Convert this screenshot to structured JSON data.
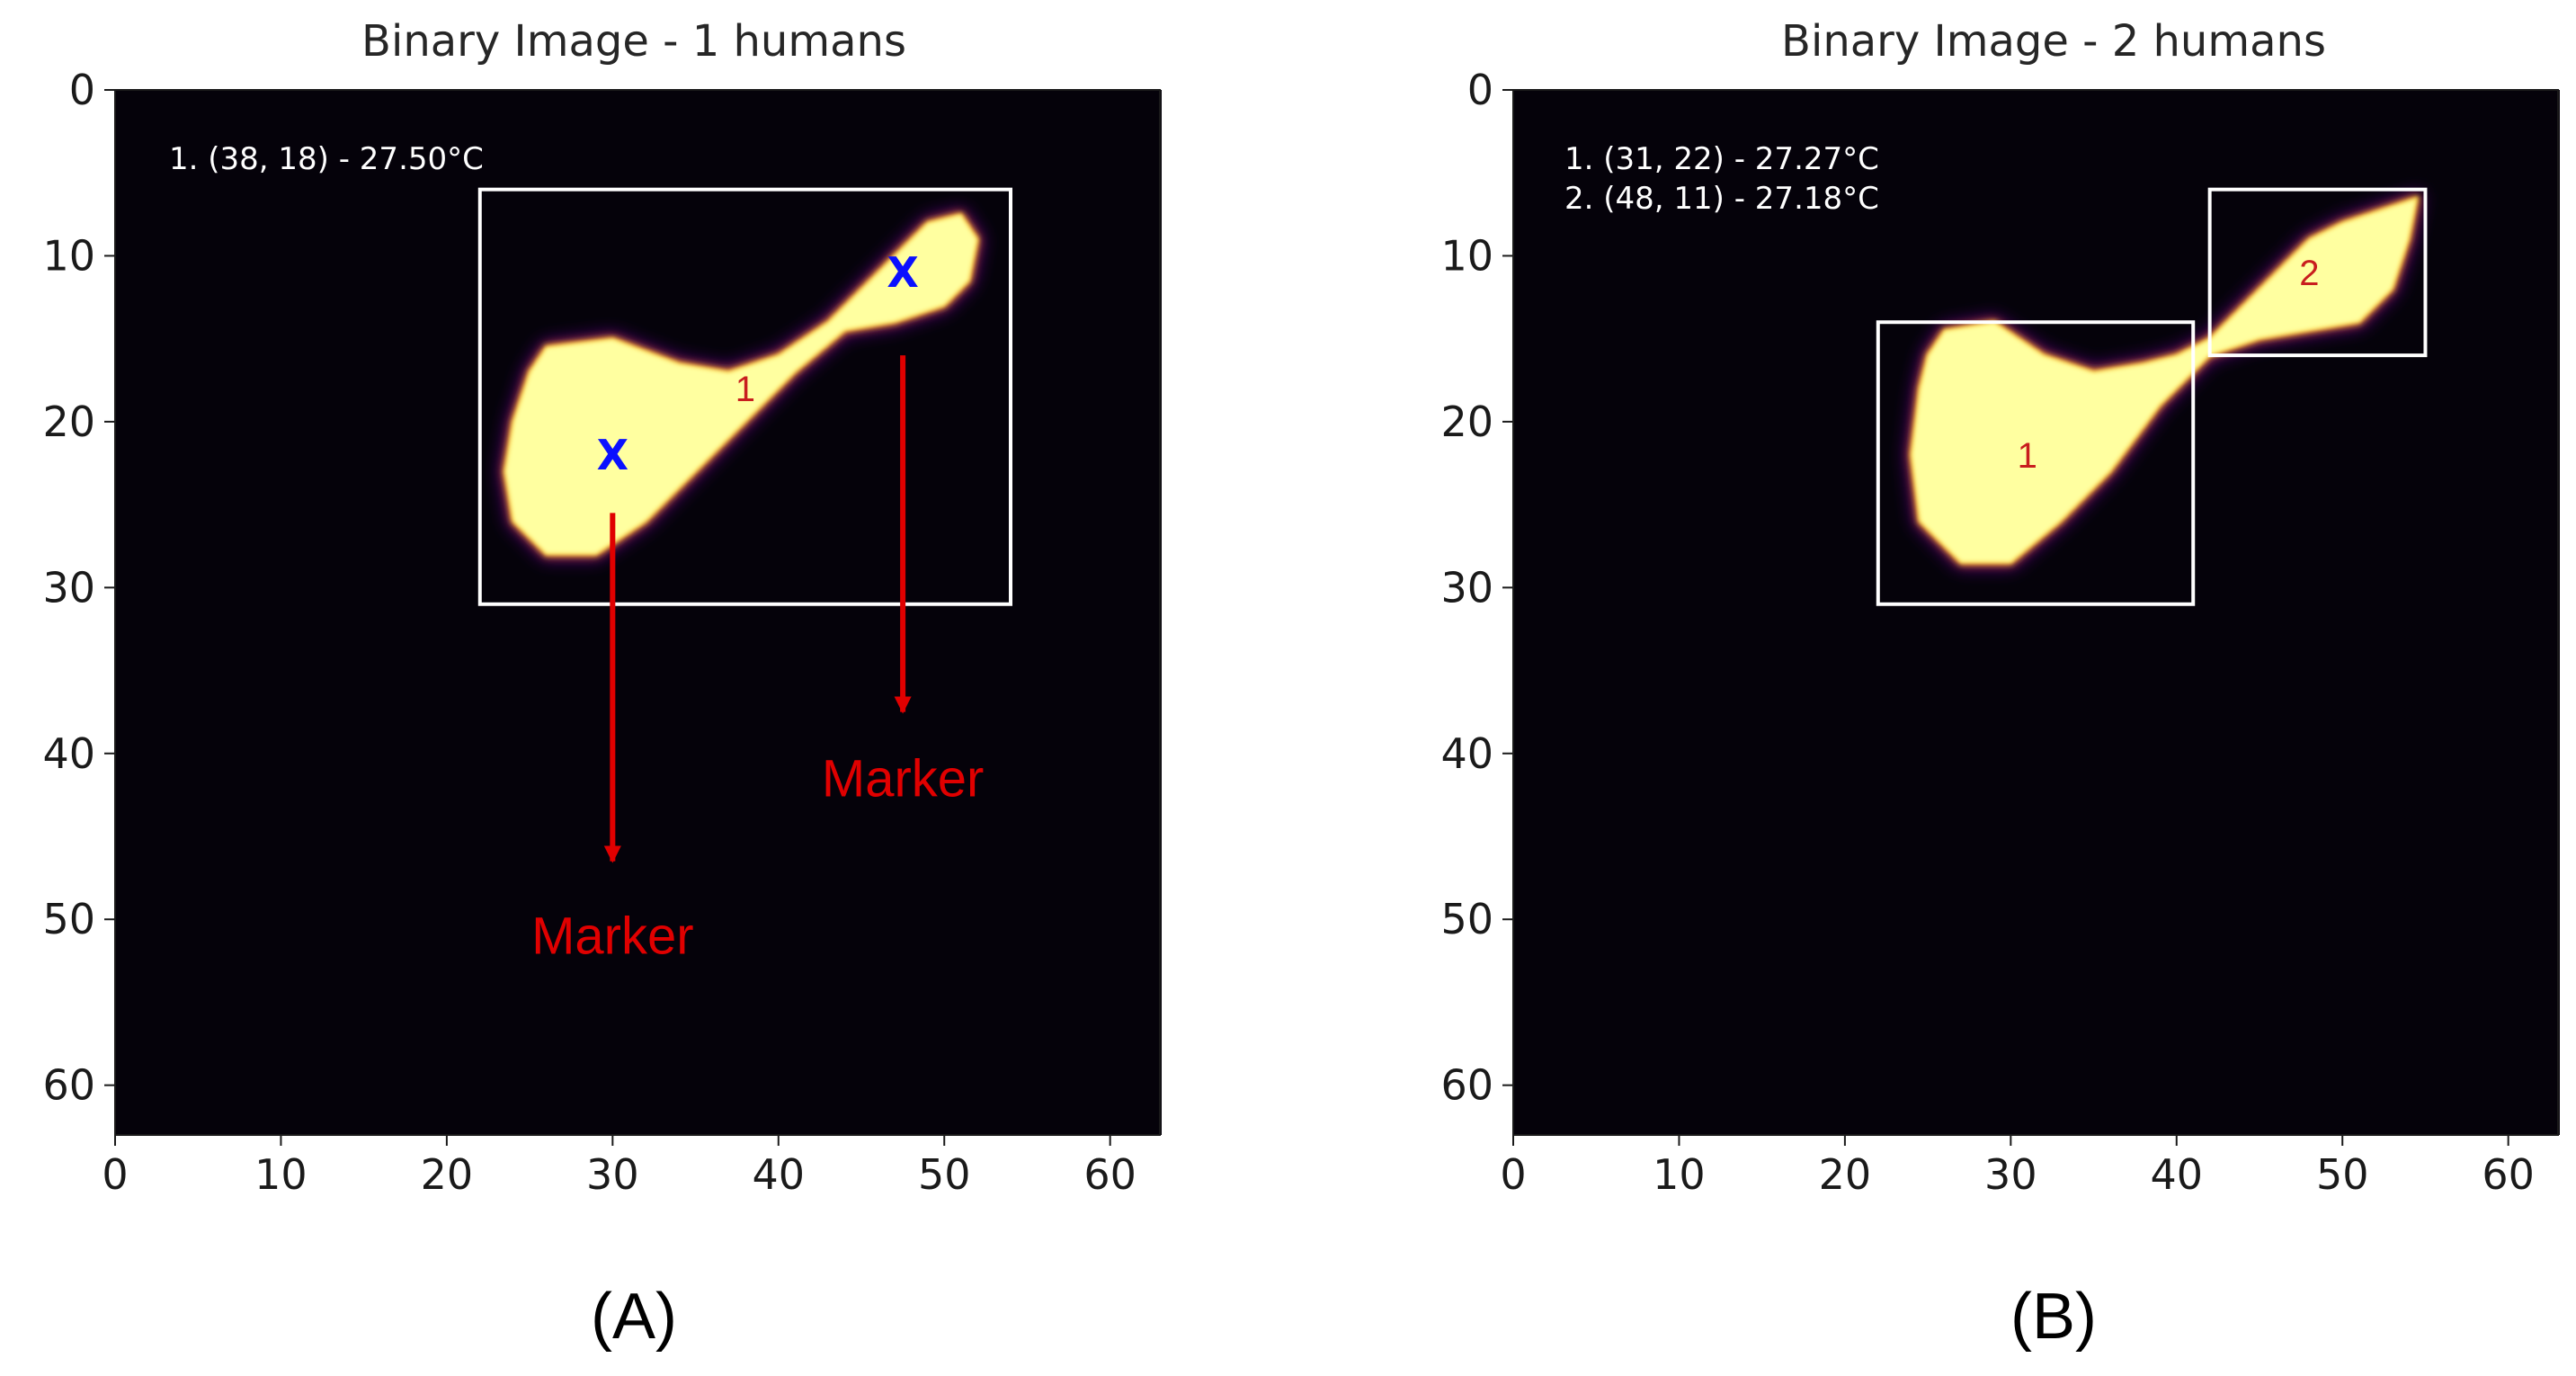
{
  "colors": {
    "background": "#05020a",
    "blob_core": "#ffffa0",
    "blob_edge_outer": "#4a0a6e",
    "box": "#ffffff",
    "marker_arrow": "#e00000",
    "centroid_x": "#0a10ff",
    "region_label": "#c81e1e"
  },
  "panels": [
    {
      "caption": "(A)",
      "chart_data": {
        "type": "heatmap",
        "title": "Binary Image - 1 humans",
        "xlim": [
          0,
          63
        ],
        "ylim": [
          63,
          0
        ],
        "xticks": [
          "0",
          "10",
          "20",
          "30",
          "40",
          "50",
          "60"
        ],
        "yticks": [
          "0",
          "10",
          "20",
          "30",
          "40",
          "50",
          "60"
        ],
        "annotations": [
          "1. (38, 18) - 27.50°C"
        ],
        "blobs": [
          {
            "points": [
              [
                26,
                15.5
              ],
              [
                30,
                15
              ],
              [
                34,
                16.5
              ],
              [
                37,
                17
              ],
              [
                40,
                16
              ],
              [
                43,
                14
              ],
              [
                45,
                12
              ],
              [
                47,
                10
              ],
              [
                49,
                8
              ],
              [
                51,
                7.5
              ],
              [
                52,
                9
              ],
              [
                51.5,
                11.5
              ],
              [
                50,
                13
              ],
              [
                47,
                14
              ],
              [
                44,
                14.5
              ],
              [
                41,
                17
              ],
              [
                38,
                20
              ],
              [
                35,
                23
              ],
              [
                32,
                26
              ],
              [
                29,
                28
              ],
              [
                26,
                28
              ],
              [
                24,
                26
              ],
              [
                23.5,
                23
              ],
              [
                24,
                20
              ],
              [
                25,
                17
              ]
            ]
          }
        ],
        "boxes": [
          {
            "x0": 22,
            "y0": 6,
            "x1": 54,
            "y1": 31,
            "label": "1",
            "lx": 38,
            "ly": 18
          }
        ],
        "centroids": [
          {
            "x": 30,
            "y": 22,
            "symbol": "X"
          },
          {
            "x": 47.5,
            "y": 11,
            "symbol": "X"
          }
        ],
        "arrows": [
          {
            "x": 30,
            "y_from": 25.5,
            "y_to": 46.5,
            "text": "Marker",
            "ty": 51
          },
          {
            "x": 47.5,
            "y_from": 16,
            "y_to": 37.5,
            "text": "Marker",
            "ty": 41.5
          }
        ]
      }
    },
    {
      "caption": "(B)",
      "chart_data": {
        "type": "heatmap",
        "title": "Binary Image - 2 humans",
        "xlim": [
          0,
          63
        ],
        "ylim": [
          63,
          0
        ],
        "xticks": [
          "0",
          "10",
          "20",
          "30",
          "40",
          "50",
          "60"
        ],
        "yticks": [
          "0",
          "10",
          "20",
          "30",
          "40",
          "50",
          "60"
        ],
        "annotations": [
          "1. (31, 22) - 27.27°C",
          "2. (48, 11) - 27.18°C"
        ],
        "blobs": [
          {
            "points": [
              [
                26,
                14.5
              ],
              [
                29,
                14
              ],
              [
                32,
                16
              ],
              [
                35,
                17
              ],
              [
                38,
                16.5
              ],
              [
                40,
                16
              ],
              [
                42,
                15
              ],
              [
                44,
                13
              ],
              [
                46,
                11
              ],
              [
                48,
                9
              ],
              [
                50,
                8
              ],
              [
                53,
                7
              ],
              [
                54.5,
                6.5
              ],
              [
                54,
                9
              ],
              [
                53,
                12
              ],
              [
                51,
                14
              ],
              [
                48,
                14.5
              ],
              [
                45,
                15
              ],
              [
                42,
                16
              ],
              [
                39,
                19
              ],
              [
                36,
                23
              ],
              [
                33,
                26
              ],
              [
                30,
                28.5
              ],
              [
                27,
                28.5
              ],
              [
                24.5,
                26
              ],
              [
                24,
                22
              ],
              [
                24.5,
                18
              ],
              [
                25,
                16
              ]
            ]
          }
        ],
        "boxes": [
          {
            "x0": 22,
            "y0": 14,
            "x1": 41,
            "y1": 31,
            "label": "1",
            "lx": 31,
            "ly": 22
          },
          {
            "x0": 42,
            "y0": 6,
            "x1": 55,
            "y1": 16,
            "label": "2",
            "lx": 48,
            "ly": 11
          }
        ],
        "centroids": [],
        "arrows": []
      }
    }
  ]
}
